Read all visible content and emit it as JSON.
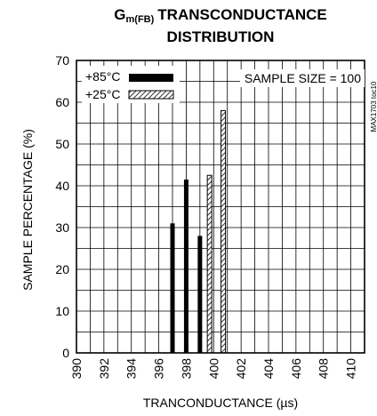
{
  "chart_data": {
    "type": "bar",
    "title_main": "G",
    "title_sub": "m(FB)",
    "title_rest": "TRANSCONDUCTANCE",
    "title_line2": "DISTRIBUTION",
    "xlabel": "TRANCONDUCTANCE (µs)",
    "ylabel": "SAMPLE PERCENTAGE (%)",
    "xlim": [
      390,
      411
    ],
    "ylim": [
      0,
      70
    ],
    "x_ticks": [
      "390",
      "392",
      "394",
      "396",
      "398",
      "400",
      "402",
      "404",
      "406",
      "408",
      "410"
    ],
    "y_ticks": [
      "0",
      "10",
      "20",
      "30",
      "40",
      "50",
      "60",
      "70"
    ],
    "grid": true,
    "annotation": "SAMPLE SIZE = 100",
    "figure_id": "MAX1703 toc10",
    "legend_position": "top-left",
    "series": [
      {
        "name": "+85°C",
        "style": "solid",
        "color": "#000000",
        "points": [
          {
            "x": 397.0,
            "y": 31
          },
          {
            "x": 398.0,
            "y": 41.5
          },
          {
            "x": 399.0,
            "y": 28
          }
        ]
      },
      {
        "name": "+25°C",
        "style": "hatched",
        "color": "#000000",
        "points": [
          {
            "x": 399.7,
            "y": 42.5
          },
          {
            "x": 400.7,
            "y": 58
          }
        ]
      }
    ]
  }
}
